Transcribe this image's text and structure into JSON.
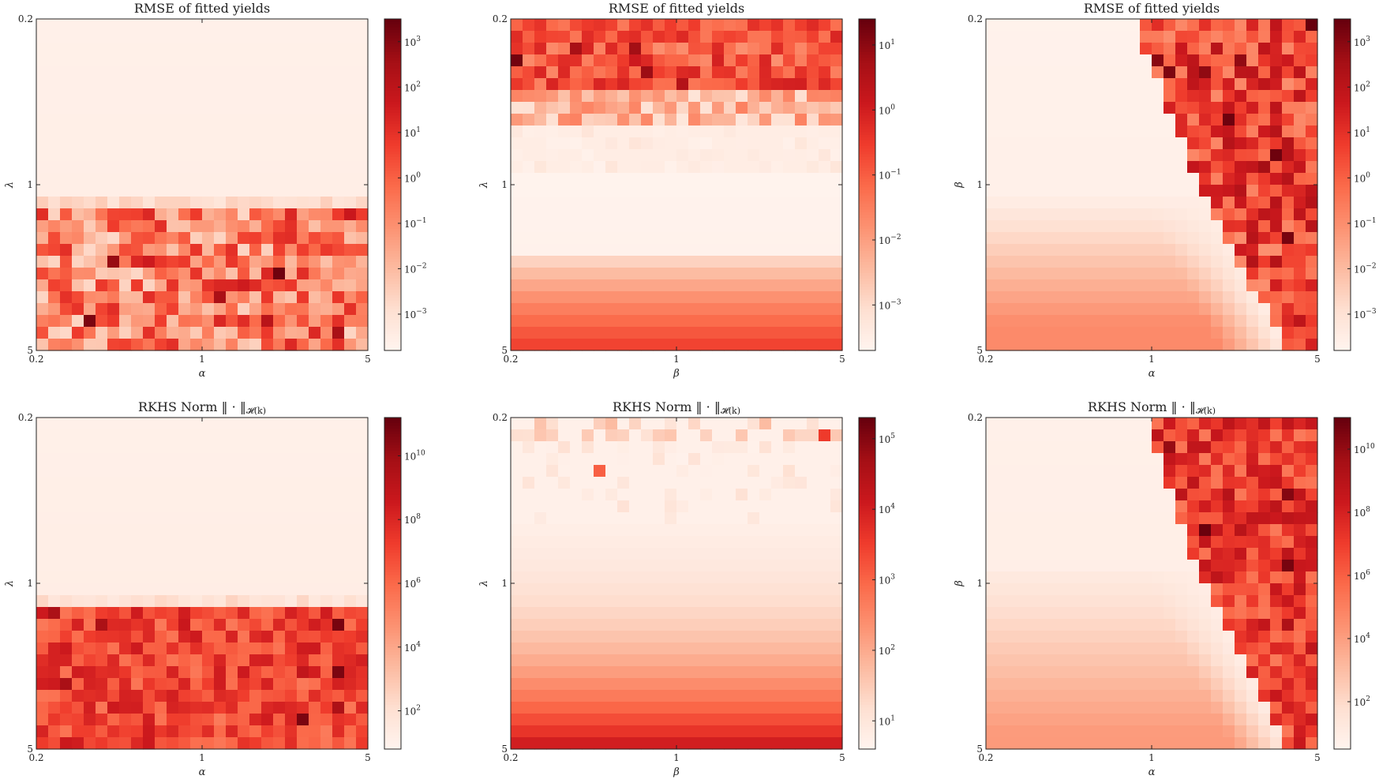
{
  "chart_data": [
    {
      "type": "heatmap",
      "panel": "top-left",
      "title": "RMSE of fitted yields",
      "xlabel": "α",
      "ylabel": "λ",
      "x_scale": "log",
      "y_scale": "log",
      "x_ticks": [
        "0.2",
        "1",
        "5"
      ],
      "y_ticks": [
        "0.2",
        "1",
        "5"
      ],
      "xlim": [
        0.2,
        5
      ],
      "ylim": [
        0.2,
        5
      ],
      "colorbar": {
        "scale": "log",
        "min_exp": -3.8,
        "max_exp": 3.5,
        "ticks": [
          {
            "base": "10",
            "exp": "3",
            "e": 3
          },
          {
            "base": "10",
            "exp": "2",
            "e": 2
          },
          {
            "base": "10",
            "exp": "1",
            "e": 1
          },
          {
            "base": "10",
            "exp": "0",
            "e": 0
          },
          {
            "base": "10",
            "exp": "−1",
            "e": -1
          },
          {
            "base": "10",
            "exp": "−2",
            "e": -2
          },
          {
            "base": "10",
            "exp": "−3",
            "e": -3
          }
        ]
      },
      "pattern": "lambda < 1.2: uniformly very low error; lambda > 1.2: noisy high error",
      "grid": "off"
    },
    {
      "type": "heatmap",
      "panel": "top-middle",
      "title": "RMSE of fitted yields",
      "xlabel": "β",
      "ylabel": "λ",
      "x_scale": "log",
      "y_scale": "log",
      "x_ticks": [
        "0.2",
        "1",
        "5"
      ],
      "y_ticks": [
        "0.2",
        "1",
        "5"
      ],
      "xlim": [
        0.2,
        5
      ],
      "ylim": [
        0.2,
        5
      ],
      "colorbar": {
        "scale": "log",
        "min_exp": -3.7,
        "max_exp": 1.4,
        "ticks": [
          {
            "base": "10",
            "exp": "1",
            "e": 1
          },
          {
            "base": "10",
            "exp": "0",
            "e": 0
          },
          {
            "base": "10",
            "exp": "−1",
            "e": -1
          },
          {
            "base": "10",
            "exp": "−2",
            "e": -2
          },
          {
            "base": "10",
            "exp": "−3",
            "e": -3
          }
        ]
      },
      "pattern": "noisy high error at small lambda, smooth increase at large lambda",
      "grid": "off"
    },
    {
      "type": "heatmap",
      "panel": "top-right",
      "title": "RMSE of fitted yields",
      "xlabel": "α",
      "ylabel": "β",
      "x_scale": "log",
      "y_scale": "log",
      "x_ticks": [
        "0.2",
        "1",
        "5"
      ],
      "y_ticks": [
        "0.2",
        "1",
        "5"
      ],
      "xlim": [
        0.2,
        5
      ],
      "ylim": [
        0.2,
        5
      ],
      "colorbar": {
        "scale": "log",
        "min_exp": -3.8,
        "max_exp": 3.5,
        "ticks": [
          {
            "base": "10",
            "exp": "3",
            "e": 3
          },
          {
            "base": "10",
            "exp": "2",
            "e": 2
          },
          {
            "base": "10",
            "exp": "1",
            "e": 1
          },
          {
            "base": "10",
            "exp": "0",
            "e": 0
          },
          {
            "base": "10",
            "exp": "−1",
            "e": -1
          },
          {
            "base": "10",
            "exp": "−2",
            "e": -2
          },
          {
            "base": "10",
            "exp": "−3",
            "e": -3
          }
        ]
      },
      "pattern": "noisy high error at large alpha, smooth elsewhere",
      "grid": "off"
    },
    {
      "type": "heatmap",
      "panel": "bottom-left",
      "title": "RKHS Norm ‖ · ‖",
      "title_sub": "𝓗(k)",
      "xlabel": "α",
      "ylabel": "λ",
      "x_scale": "log",
      "y_scale": "log",
      "x_ticks": [
        "0.2",
        "1",
        "5"
      ],
      "y_ticks": [
        "0.2",
        "1",
        "5"
      ],
      "xlim": [
        0.2,
        5
      ],
      "ylim": [
        0.2,
        5
      ],
      "colorbar": {
        "scale": "log",
        "min_exp": 0.8,
        "max_exp": 11.2,
        "ticks": [
          {
            "base": "10",
            "exp": "10",
            "e": 10
          },
          {
            "base": "10",
            "exp": "8",
            "e": 8
          },
          {
            "base": "10",
            "exp": "6",
            "e": 6
          },
          {
            "base": "10",
            "exp": "4",
            "e": 4
          },
          {
            "base": "10",
            "exp": "2",
            "e": 2
          }
        ]
      },
      "pattern": "lambda < 1.2: small norm; lambda > 1.2: large noisy norm",
      "grid": "off"
    },
    {
      "type": "heatmap",
      "panel": "bottom-middle",
      "title": "RKHS Norm ‖ · ‖",
      "title_sub": "𝓗(k)",
      "xlabel": "β",
      "ylabel": "λ",
      "x_scale": "log",
      "y_scale": "log",
      "x_ticks": [
        "0.2",
        "1",
        "5"
      ],
      "y_ticks": [
        "0.2",
        "1",
        "5"
      ],
      "xlim": [
        0.2,
        5
      ],
      "ylim": [
        0.2,
        5
      ],
      "colorbar": {
        "scale": "log",
        "min_exp": 0.6,
        "max_exp": 5.3,
        "ticks": [
          {
            "base": "10",
            "exp": "5",
            "e": 5
          },
          {
            "base": "10",
            "exp": "4",
            "e": 4
          },
          {
            "base": "10",
            "exp": "3",
            "e": 3
          },
          {
            "base": "10",
            "exp": "2",
            "e": 2
          },
          {
            "base": "10",
            "exp": "1",
            "e": 1
          }
        ]
      },
      "pattern": "smooth increase with lambda, sparse outliers at small lambda",
      "grid": "off"
    },
    {
      "type": "heatmap",
      "panel": "bottom-right",
      "title": "RKHS Norm ‖ · ‖",
      "title_sub": "𝓗(k)",
      "xlabel": "α",
      "ylabel": "β",
      "x_scale": "log",
      "y_scale": "log",
      "x_ticks": [
        "0.2",
        "1",
        "5"
      ],
      "y_ticks": [
        "0.2",
        "1",
        "5"
      ],
      "xlim": [
        0.2,
        5
      ],
      "ylim": [
        0.2,
        5
      ],
      "colorbar": {
        "scale": "log",
        "min_exp": 0.5,
        "max_exp": 11.0,
        "ticks": [
          {
            "base": "10",
            "exp": "10",
            "e": 10
          },
          {
            "base": "10",
            "exp": "8",
            "e": 8
          },
          {
            "base": "10",
            "exp": "6",
            "e": 6
          },
          {
            "base": "10",
            "exp": "4",
            "e": 4
          },
          {
            "base": "10",
            "exp": "2",
            "e": 2
          }
        ]
      },
      "pattern": "large noisy norm at large alpha, smooth elsewhere",
      "grid": "off"
    }
  ]
}
